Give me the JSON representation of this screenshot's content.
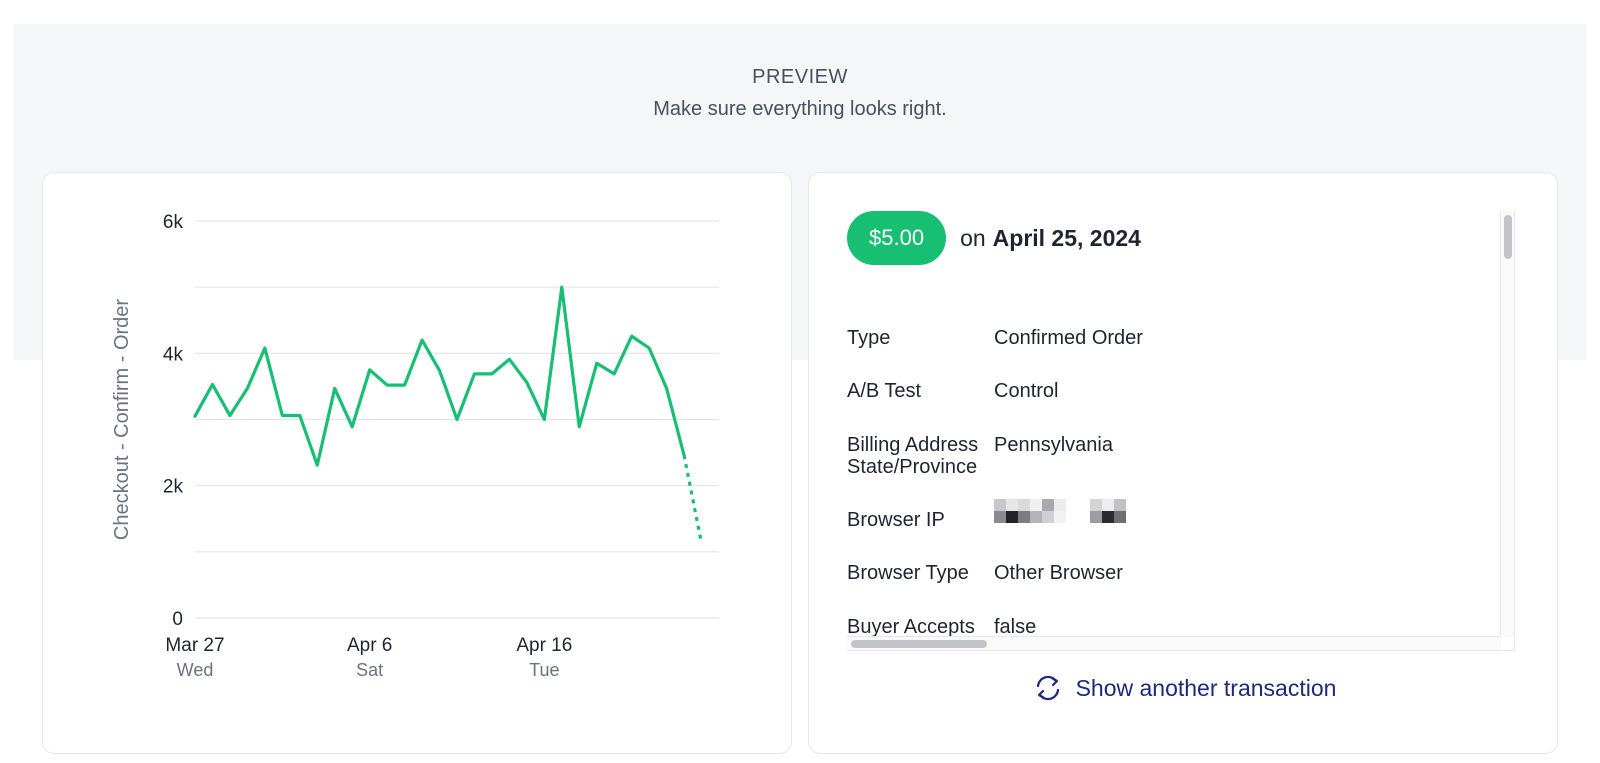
{
  "header": {
    "title": "PREVIEW",
    "subtitle": "Make sure everything looks right."
  },
  "colors": {
    "accent_green": "#17bf73",
    "link_navy": "#1b2a7a",
    "band_gray": "#f5f6f8"
  },
  "chart_data": {
    "type": "line",
    "ylabel": "Checkout - Confirm - Order",
    "ylim": [
      0,
      6000
    ],
    "yticks": [
      {
        "value": 0,
        "label": "0"
      },
      {
        "value": 2000,
        "label": "2k"
      },
      {
        "value": 4000,
        "label": "4k"
      },
      {
        "value": 6000,
        "label": "6k"
      }
    ],
    "grid": true,
    "xlim": [
      "2024-03-27",
      "2024-04-26"
    ],
    "xticks": [
      {
        "date": "2024-03-27",
        "label": "Mar 27",
        "sublabel": "Wed"
      },
      {
        "date": "2024-04-06",
        "label": "Apr 6",
        "sublabel": "Sat"
      },
      {
        "date": "2024-04-16",
        "label": "Apr 16",
        "sublabel": "Tue"
      }
    ],
    "series": [
      {
        "x": [
          "2024-03-27",
          "2024-03-28",
          "2024-03-29",
          "2024-03-30",
          "2024-03-31",
          "2024-04-01",
          "2024-04-02",
          "2024-04-03",
          "2024-04-04",
          "2024-04-05",
          "2024-04-06",
          "2024-04-07",
          "2024-04-08",
          "2024-04-09",
          "2024-04-10",
          "2024-04-11",
          "2024-04-12",
          "2024-04-13",
          "2024-04-14",
          "2024-04-15",
          "2024-04-16",
          "2024-04-17",
          "2024-04-18",
          "2024-04-19",
          "2024-04-20",
          "2024-04-21",
          "2024-04-22",
          "2024-04-23",
          "2024-04-24",
          "2024-04-25"
        ],
        "values": [
          3050,
          3530,
          3060,
          3470,
          4080,
          3060,
          3060,
          2310,
          3470,
          2890,
          3750,
          3520,
          3520,
          4200,
          3740,
          3000,
          3690,
          3690,
          3910,
          3560,
          3000,
          5000,
          2890,
          3850,
          3690,
          4260,
          4080,
          3470,
          2460,
          1130
        ],
        "complete_through": "2024-04-24",
        "color": "#17bf73"
      }
    ]
  },
  "transaction": {
    "amount": "$5.00",
    "on": "on",
    "date": "April 25, 2024",
    "fields": [
      {
        "key": "Type",
        "value": "Confirmed Order"
      },
      {
        "key": "A/B Test",
        "value": "Control"
      },
      {
        "key": "Billing Address State/Province",
        "value": "Pennsylvania"
      },
      {
        "key": "Browser IP",
        "value": ""
      },
      {
        "key": "Browser Type",
        "value": "Other Browser"
      },
      {
        "key": "Buyer Accepts Marketing",
        "value": "false"
      }
    ],
    "show_another_label": "Show another transaction",
    "show_another_icon": "refresh-icon"
  }
}
